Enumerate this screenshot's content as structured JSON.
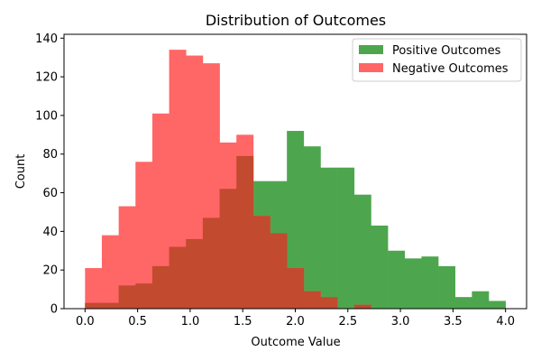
{
  "chart_data": {
    "type": "bar",
    "title": "Distribution of Outcomes",
    "xlabel": "Outcome Value",
    "ylabel": "Count",
    "xlim": [
      -0.2,
      4.2
    ],
    "ylim": [
      0,
      142
    ],
    "xticks": [
      "0.0",
      "0.5",
      "1.0",
      "1.5",
      "2.0",
      "2.5",
      "3.0",
      "3.5",
      "4.0"
    ],
    "yticks": [
      "0",
      "20",
      "40",
      "60",
      "80",
      "100",
      "120",
      "140"
    ],
    "legend_position": "top-right",
    "bin_width": 0.16,
    "series": [
      {
        "name": "Positive Outcomes",
        "color": "#4da64d",
        "overlap_color": "#c24a2f",
        "bin_edges": [
          0.0,
          0.16,
          0.32,
          0.48,
          0.64,
          0.8,
          0.96,
          1.12,
          1.28,
          1.44,
          1.6,
          1.76,
          1.92,
          2.08,
          2.24,
          2.4,
          2.56,
          2.72,
          2.88,
          3.04,
          3.2,
          3.36,
          3.52,
          3.68,
          3.84,
          4.0
        ],
        "values": [
          3,
          3,
          12,
          13,
          22,
          32,
          36,
          47,
          62,
          79,
          66,
          66,
          92,
          84,
          73,
          73,
          59,
          43,
          30,
          26,
          27,
          22,
          6,
          9,
          4
        ]
      },
      {
        "name": "Negative Outcomes",
        "color": "#ff6666",
        "bin_edges": [
          0.0,
          0.16,
          0.32,
          0.48,
          0.64,
          0.8,
          0.96,
          1.12,
          1.28,
          1.44,
          1.6,
          1.76,
          1.92,
          2.08,
          2.24,
          2.4,
          2.56,
          2.72
        ],
        "values": [
          21,
          38,
          53,
          76,
          101,
          134,
          131,
          127,
          86,
          90,
          48,
          39,
          21,
          9,
          6,
          0,
          2
        ]
      }
    ]
  }
}
